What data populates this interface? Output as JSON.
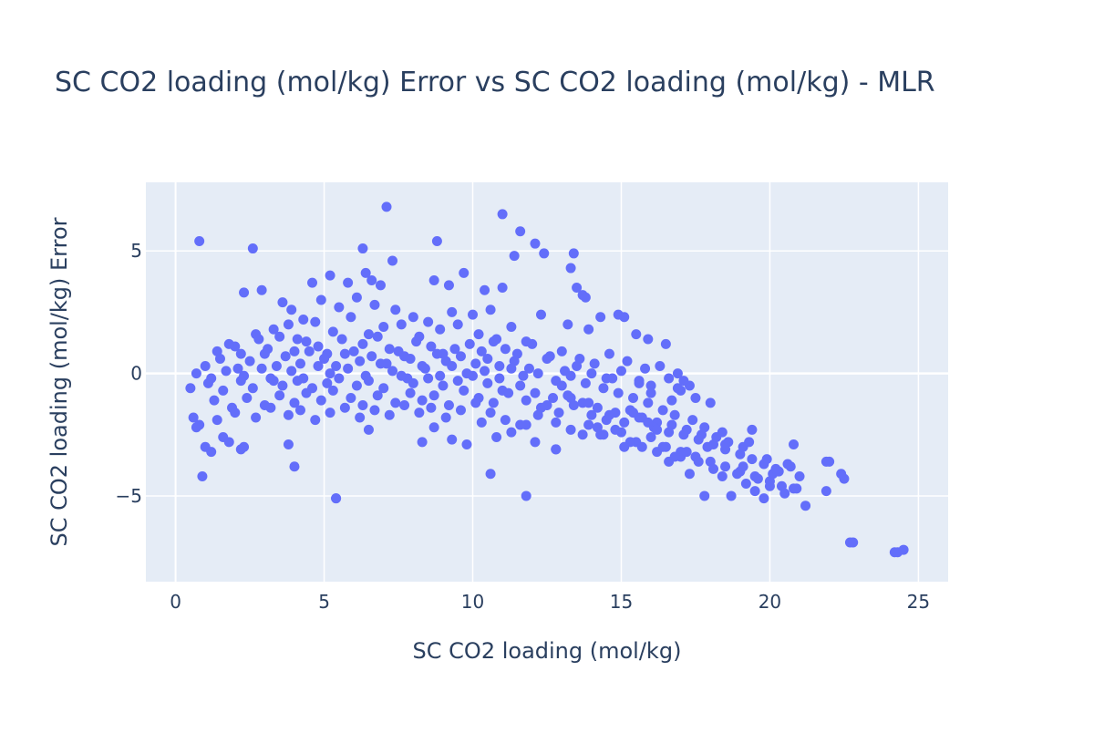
{
  "chart_data": {
    "type": "scatter",
    "title": "SC CO2 loading (mol/kg) Error vs SC CO2 loading (mol/kg) - MLR",
    "xlabel": "SC CO2 loading (mol/kg)",
    "ylabel": "SC CO2 loading (mol/kg) Error",
    "xlim": [
      -1.0,
      26.0
    ],
    "ylim": [
      -8.5,
      7.8
    ],
    "x_ticks": [
      0,
      5,
      10,
      15,
      20,
      25
    ],
    "x_tick_labels": [
      "0",
      "5",
      "10",
      "15",
      "20",
      "25"
    ],
    "y_ticks": [
      -5,
      0,
      5
    ],
    "y_tick_labels": [
      "−5",
      "0",
      "5"
    ],
    "grid": true,
    "legend": "none",
    "colors": {
      "marker": "#636efa",
      "plot_background": "#e5ecf6",
      "grid": "#ffffff",
      "text": "#2a3f5f"
    },
    "series": [
      {
        "x": [
          0.8,
          2.6,
          7.1,
          11.0,
          11.6,
          12.1,
          8.8,
          6.3,
          7.3,
          6.6,
          6.9,
          5.2,
          4.6,
          12.4,
          11.4,
          13.3,
          13.5,
          13.7,
          13.8,
          13.4,
          2.3,
          2.9,
          5.8,
          6.4,
          8.7,
          9.2,
          9.7,
          10.4,
          3.6,
          3.9,
          4.3,
          4.9,
          5.5,
          6.1,
          6.7,
          7.4,
          8.0,
          8.5,
          9.3,
          10.0,
          10.6,
          11.0,
          12.3,
          13.2,
          13.9,
          14.3,
          14.9,
          15.1,
          15.5,
          15.9,
          16.5,
          2.0,
          2.7,
          3.3,
          3.8,
          4.1,
          4.7,
          5.3,
          5.9,
          6.5,
          7.0,
          7.6,
          8.2,
          8.9,
          9.5,
          10.2,
          10.8,
          11.3,
          11.8,
          1.4,
          1.8,
          2.2,
          2.8,
          3.1,
          3.5,
          4.0,
          4.4,
          4.8,
          5.1,
          5.6,
          6.0,
          6.3,
          6.8,
          7.2,
          7.7,
          8.1,
          8.6,
          9.0,
          9.4,
          9.9,
          10.3,
          10.7,
          11.1,
          11.5,
          12.0,
          12.6,
          13.0,
          13.6,
          14.1,
          14.6,
          15.2,
          15.8,
          16.3,
          16.9,
          17.3,
          1.0,
          1.5,
          2.1,
          2.5,
          3.0,
          3.4,
          3.7,
          4.2,
          4.5,
          5.0,
          5.4,
          5.7,
          6.2,
          6.6,
          7.1,
          7.5,
          7.9,
          8.3,
          8.8,
          9.1,
          9.6,
          10.1,
          10.5,
          10.9,
          11.4,
          11.9,
          12.5,
          13.1,
          13.5,
          14.0,
          14.5,
          15.0,
          15.6,
          16.0,
          16.6,
          17.0,
          17.5,
          18.0,
          0.7,
          1.2,
          1.7,
          2.3,
          2.9,
          3.3,
          3.9,
          4.3,
          4.8,
          5.2,
          5.8,
          6.4,
          6.9,
          7.3,
          7.8,
          8.4,
          8.9,
          9.3,
          9.8,
          10.4,
          10.9,
          11.3,
          11.7,
          12.2,
          12.8,
          13.3,
          13.8,
          14.4,
          14.9,
          15.4,
          15.9,
          16.4,
          16.8,
          17.4,
          17.8,
          18.4,
          0.5,
          1.1,
          1.6,
          2.2,
          2.6,
          3.2,
          3.6,
          4.1,
          4.6,
          5.1,
          5.5,
          6.1,
          6.5,
          7.0,
          7.6,
          8.0,
          8.5,
          9.0,
          9.5,
          10.0,
          10.5,
          11.0,
          11.6,
          12.1,
          12.7,
          13.2,
          13.7,
          14.2,
          14.8,
          15.3,
          15.7,
          16.2,
          16.7,
          17.2,
          17.7,
          18.2,
          18.6,
          19.1,
          0.6,
          1.3,
          1.9,
          2.4,
          3.0,
          3.5,
          4.0,
          4.4,
          4.9,
          5.3,
          5.9,
          6.3,
          6.8,
          7.4,
          7.9,
          8.3,
          8.7,
          9.2,
          9.7,
          10.2,
          10.7,
          11.2,
          11.8,
          12.3,
          12.9,
          13.4,
          14.0,
          14.5,
          15.1,
          15.6,
          16.1,
          16.6,
          17.1,
          17.6,
          18.1,
          18.5,
          19.0,
          19.4,
          19.8,
          0.8,
          1.4,
          2.0,
          2.7,
          3.2,
          3.8,
          4.2,
          4.7,
          5.2,
          5.7,
          6.2,
          6.7,
          7.2,
          7.7,
          8.2,
          8.6,
          9.1,
          9.6,
          10.1,
          10.6,
          11.1,
          11.6,
          12.2,
          12.8,
          13.3,
          13.9,
          14.4,
          15.0,
          15.5,
          16.0,
          16.5,
          17.0,
          17.5,
          18.0,
          18.5,
          19.0,
          19.5,
          20.0,
          20.4,
          0.7,
          1.0,
          1.6,
          2.2,
          0.9,
          1.2,
          1.8,
          2.3,
          3.8,
          4.0,
          5.4,
          6.5,
          8.3,
          8.7,
          9.3,
          9.8,
          10.3,
          10.8,
          11.3,
          11.8,
          12.1,
          12.8,
          14.3,
          14.8,
          15.3,
          15.7,
          16.2,
          16.6,
          17.0,
          17.3,
          17.6,
          18.1,
          18.4,
          18.7,
          19.2,
          19.5,
          19.8,
          20.1,
          20.5,
          20.8,
          21.2,
          21.9,
          22.0,
          22.5,
          22.7,
          17.8,
          18.9,
          19.1,
          19.6,
          20.0,
          20.3,
          20.7,
          20.9,
          21.0,
          19.3,
          19.9,
          20.2,
          20.6,
          20.8,
          19.4,
          18.5,
          17.9,
          17.2,
          16.8,
          16.4,
          24.2,
          24.3,
          24.5,
          22.8,
          21.9,
          22.4,
          11.8,
          10.6,
          5.4,
          12.8,
          13.7,
          14.2,
          15.1,
          15.9,
          16.2,
          16.7,
          14.6,
          13.9,
          15.4,
          16.9,
          17.1,
          16.0,
          15.6,
          14.7,
          13.3,
          12.5,
          13.0
        ],
        "y": [
          5.4,
          5.1,
          6.8,
          6.5,
          5.8,
          5.3,
          5.4,
          5.1,
          4.6,
          3.8,
          3.6,
          4.0,
          3.7,
          4.9,
          4.8,
          4.3,
          3.5,
          3.2,
          3.1,
          4.9,
          3.3,
          3.4,
          3.7,
          4.1,
          3.8,
          3.6,
          4.1,
          3.4,
          2.9,
          2.6,
          2.2,
          3.0,
          2.7,
          3.1,
          2.8,
          2.6,
          2.3,
          2.1,
          2.5,
          2.4,
          2.6,
          3.5,
          2.4,
          2.0,
          1.8,
          2.3,
          2.4,
          2.3,
          1.6,
          1.4,
          1.2,
          1.1,
          1.6,
          1.8,
          2.0,
          1.4,
          2.1,
          1.7,
          2.3,
          1.6,
          1.9,
          2.0,
          1.5,
          1.8,
          2.0,
          1.6,
          1.4,
          1.9,
          1.3,
          0.9,
          1.2,
          0.8,
          1.4,
          1.0,
          1.5,
          0.9,
          1.3,
          1.1,
          0.8,
          1.4,
          0.9,
          1.2,
          1.5,
          1.0,
          0.7,
          1.3,
          1.1,
          0.8,
          1.0,
          1.2,
          0.9,
          1.3,
          1.0,
          0.8,
          1.2,
          0.7,
          0.9,
          0.6,
          0.4,
          0.8,
          0.5,
          0.2,
          0.3,
          0.0,
          -0.5,
          0.3,
          0.6,
          0.2,
          0.5,
          0.8,
          0.3,
          0.7,
          0.4,
          0.9,
          0.6,
          0.3,
          0.8,
          0.5,
          0.7,
          0.4,
          0.9,
          0.6,
          0.3,
          0.8,
          0.5,
          0.7,
          0.4,
          0.6,
          0.3,
          0.5,
          0.2,
          0.6,
          0.1,
          0.3,
          0.0,
          -0.2,
          0.1,
          -0.3,
          -0.5,
          -0.2,
          -0.7,
          -1.0,
          -1.2,
          0.0,
          -0.2,
          0.1,
          -0.1,
          0.2,
          -0.3,
          0.1,
          -0.2,
          0.3,
          0.0,
          0.2,
          -0.1,
          0.4,
          0.1,
          -0.2,
          0.2,
          -0.1,
          0.3,
          0.0,
          0.1,
          -0.2,
          0.2,
          -0.1,
          0.0,
          -0.3,
          -0.1,
          -0.4,
          -0.6,
          -0.8,
          -1.0,
          -1.2,
          -1.5,
          -1.7,
          -1.9,
          -2.2,
          -2.4,
          -0.6,
          -0.4,
          -0.7,
          -0.3,
          -0.6,
          -0.2,
          -0.5,
          -0.3,
          -0.6,
          -0.4,
          -0.2,
          -0.5,
          -0.3,
          -0.6,
          -0.1,
          -0.4,
          -0.2,
          -0.5,
          -0.3,
          -0.1,
          -0.4,
          -0.7,
          -0.5,
          -0.8,
          -1.0,
          -0.9,
          -1.2,
          -1.4,
          -1.6,
          -1.5,
          -1.8,
          -2.0,
          -2.1,
          -2.3,
          -2.5,
          -2.6,
          -2.8,
          -3.0,
          -1.8,
          -1.1,
          -1.4,
          -1.0,
          -1.3,
          -0.9,
          -1.2,
          -0.8,
          -1.1,
          -0.7,
          -1.0,
          -1.3,
          -0.9,
          -1.2,
          -0.8,
          -1.1,
          -0.9,
          -1.3,
          -0.7,
          -1.0,
          -1.2,
          -0.8,
          -1.1,
          -1.4,
          -1.6,
          -1.3,
          -1.7,
          -1.9,
          -2.0,
          -1.8,
          -2.2,
          -2.4,
          -2.5,
          -2.7,
          -2.9,
          -3.1,
          -3.3,
          -3.5,
          -3.7,
          -2.1,
          -1.9,
          -1.6,
          -1.8,
          -1.4,
          -1.7,
          -1.5,
          -1.9,
          -1.6,
          -1.4,
          -1.8,
          -1.5,
          -1.7,
          -1.3,
          -1.6,
          -1.4,
          -1.8,
          -1.5,
          -1.2,
          -1.6,
          -1.9,
          -2.1,
          -1.7,
          -2.0,
          -2.3,
          -2.1,
          -2.5,
          -2.4,
          -2.8,
          -2.6,
          -3.0,
          -3.2,
          -3.4,
          -3.6,
          -3.8,
          -4.0,
          -4.2,
          -4.4,
          -4.6,
          -2.2,
          -3.0,
          -2.6,
          -3.1,
          -4.2,
          -3.2,
          -2.8,
          -3.0,
          -2.9,
          -3.8,
          -5.1,
          -2.3,
          -2.8,
          -2.2,
          -2.7,
          -2.9,
          -2.0,
          -2.6,
          -2.4,
          -2.1,
          -2.8,
          -3.1,
          -2.5,
          -2.3,
          -2.8,
          -3.0,
          -3.2,
          -3.6,
          -3.4,
          -4.1,
          -3.6,
          -3.9,
          -4.2,
          -5.0,
          -4.5,
          -4.8,
          -5.1,
          -4.1,
          -4.9,
          -4.7,
          -5.4,
          -4.8,
          -3.6,
          -4.3,
          -6.9,
          -5.0,
          -4.1,
          -3.8,
          -4.3,
          -4.6,
          -4.0,
          -3.8,
          -4.7,
          -4.2,
          -2.8,
          -3.5,
          -3.9,
          -3.7,
          -2.9,
          -2.3,
          -2.9,
          -3.0,
          -3.2,
          -3.4,
          -3.0,
          -7.3,
          -7.3,
          -7.2,
          -6.9,
          -3.6,
          -4.1,
          -5.0,
          -4.1,
          -5.1,
          -3.1,
          -2.5,
          -2.2,
          -3.0,
          -2.0,
          -2.3,
          -1.1,
          -1.7,
          -1.2,
          -1.6,
          -0.6,
          -0.3,
          -0.8,
          -0.4,
          -0.2,
          -1.0,
          -1.3,
          -0.5
        ]
      }
    ]
  }
}
